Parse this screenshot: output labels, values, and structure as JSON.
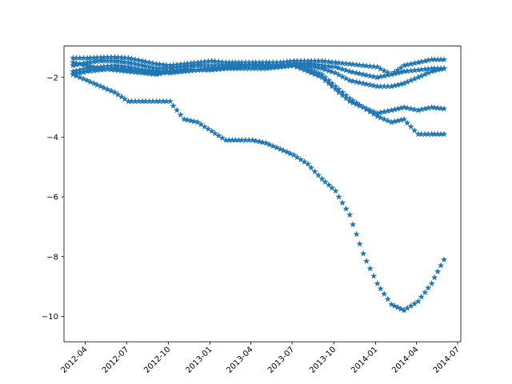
{
  "chart_data": {
    "type": "scatter",
    "title": "",
    "xlabel": "",
    "ylabel": "",
    "marker": "star",
    "color": "#1f77b4",
    "grid": false,
    "legend": "none",
    "xlim": [
      "2012-02-14",
      "2014-07-08"
    ],
    "ylim": [
      -10.85,
      -0.95
    ],
    "x_ticks": [
      {
        "value": "2012-04-01",
        "label": "2012-04"
      },
      {
        "value": "2012-07-01",
        "label": "2012-07"
      },
      {
        "value": "2012-10-01",
        "label": "2012-10"
      },
      {
        "value": "2013-01-01",
        "label": "2013-01"
      },
      {
        "value": "2013-04-01",
        "label": "2013-04"
      },
      {
        "value": "2013-07-01",
        "label": "2013-07"
      },
      {
        "value": "2013-10-01",
        "label": "2013-10"
      },
      {
        "value": "2014-01-01",
        "label": "2014-01"
      },
      {
        "value": "2014-04-01",
        "label": "2014-04"
      },
      {
        "value": "2014-07-01",
        "label": "2014-07"
      }
    ],
    "y_ticks": [
      {
        "value": -2,
        "label": "−2"
      },
      {
        "value": -4,
        "label": "−4"
      },
      {
        "value": -6,
        "label": "−6"
      },
      {
        "value": -8,
        "label": "−8"
      },
      {
        "value": -10,
        "label": "−10"
      }
    ],
    "series": [
      {
        "x": [
          "2012-03-05",
          "2012-04-05",
          "2012-05-05",
          "2012-06-05",
          "2012-07-05",
          "2012-08-05",
          "2012-09-05",
          "2012-10-05",
          "2012-11-05",
          "2012-12-05",
          "2013-01-05",
          "2013-02-05",
          "2013-03-05",
          "2013-04-05",
          "2013-05-05",
          "2013-06-05",
          "2013-07-05",
          "2013-08-05",
          "2013-09-05",
          "2013-10-05",
          "2013-11-05",
          "2013-12-05",
          "2014-01-05",
          "2014-02-05",
          "2014-03-05",
          "2014-04-05",
          "2014-05-05",
          "2014-06-01"
        ],
        "y": [
          -1.35,
          -1.35,
          -1.33,
          -1.32,
          -1.35,
          -1.45,
          -1.55,
          -1.6,
          -1.55,
          -1.5,
          -1.45,
          -1.5,
          -1.5,
          -1.5,
          -1.5,
          -1.5,
          -1.45,
          -1.45,
          -1.45,
          -1.5,
          -1.55,
          -1.6,
          -1.65,
          -1.9,
          -1.6,
          -1.5,
          -1.4,
          -1.4
        ]
      },
      {
        "x": [
          "2012-03-05",
          "2012-04-05",
          "2012-05-05",
          "2012-06-05",
          "2012-07-05",
          "2012-08-05",
          "2012-09-05",
          "2012-10-05",
          "2012-11-05",
          "2012-12-05",
          "2013-01-05",
          "2013-02-05",
          "2013-03-05",
          "2013-04-05",
          "2013-05-05",
          "2013-06-05",
          "2013-07-05",
          "2013-08-05",
          "2013-09-05",
          "2013-10-05",
          "2013-11-05",
          "2013-12-05",
          "2014-01-05",
          "2014-02-05",
          "2014-03-05",
          "2014-04-05",
          "2014-05-05",
          "2014-06-01"
        ],
        "y": [
          -1.6,
          -1.5,
          -1.45,
          -1.45,
          -1.5,
          -1.6,
          -1.7,
          -1.7,
          -1.65,
          -1.6,
          -1.6,
          -1.6,
          -1.6,
          -1.6,
          -1.65,
          -1.65,
          -1.55,
          -1.55,
          -1.6,
          -1.65,
          -1.8,
          -1.9,
          -2.0,
          -1.9,
          -1.8,
          -1.75,
          -1.7,
          -1.7
        ]
      },
      {
        "x": [
          "2012-03-05",
          "2012-04-05",
          "2012-05-05",
          "2012-06-05",
          "2012-07-05",
          "2012-08-05",
          "2012-09-05",
          "2012-10-05",
          "2012-11-05",
          "2012-12-05",
          "2013-01-05",
          "2013-02-05",
          "2013-03-05",
          "2013-04-05",
          "2013-05-05",
          "2013-06-05",
          "2013-07-05",
          "2013-08-05",
          "2013-09-05",
          "2013-10-05",
          "2013-11-05",
          "2013-12-05",
          "2014-01-05",
          "2014-02-05",
          "2014-03-05",
          "2014-04-05",
          "2014-05-05",
          "2014-06-01"
        ],
        "y": [
          -1.8,
          -1.7,
          -1.65,
          -1.6,
          -1.65,
          -1.75,
          -1.8,
          -1.85,
          -1.8,
          -1.75,
          -1.75,
          -1.7,
          -1.7,
          -1.7,
          -1.7,
          -1.65,
          -1.6,
          -1.6,
          -1.7,
          -1.85,
          -2.1,
          -2.2,
          -2.3,
          -2.3,
          -2.2,
          -2.0,
          -1.8,
          -1.7
        ]
      },
      {
        "x": [
          "2012-03-05",
          "2012-04-05",
          "2012-05-05",
          "2012-06-05",
          "2012-07-05",
          "2012-08-05",
          "2012-09-05",
          "2012-10-05",
          "2012-11-05",
          "2012-12-05",
          "2013-01-05",
          "2013-02-05",
          "2013-03-05",
          "2013-04-05",
          "2013-05-05",
          "2013-06-05",
          "2013-07-05",
          "2013-08-05",
          "2013-09-05",
          "2013-10-05",
          "2013-11-05",
          "2013-12-05",
          "2014-01-05",
          "2014-02-05",
          "2014-03-05",
          "2014-04-05",
          "2014-05-05",
          "2014-06-01"
        ],
        "y": [
          -1.5,
          -1.6,
          -1.7,
          -1.75,
          -1.8,
          -1.85,
          -1.9,
          -1.8,
          -1.75,
          -1.75,
          -1.7,
          -1.65,
          -1.65,
          -1.6,
          -1.6,
          -1.6,
          -1.6,
          -1.7,
          -1.9,
          -2.3,
          -2.7,
          -3.0,
          -3.2,
          -3.1,
          -3.0,
          -3.1,
          -3.0,
          -3.05
        ]
      },
      {
        "x": [
          "2012-03-05",
          "2012-04-05",
          "2012-05-05",
          "2012-06-05",
          "2012-07-05",
          "2012-08-05",
          "2012-09-05",
          "2012-10-05",
          "2012-11-05",
          "2012-12-05",
          "2013-01-05",
          "2013-02-05",
          "2013-03-05",
          "2013-04-05",
          "2013-05-05",
          "2013-06-05",
          "2013-07-05",
          "2013-08-05",
          "2013-09-05",
          "2013-10-05",
          "2013-11-05",
          "2013-12-05",
          "2014-01-05",
          "2014-02-05",
          "2014-03-05",
          "2014-04-05",
          "2014-05-05",
          "2014-06-01"
        ],
        "y": [
          -1.9,
          -1.8,
          -1.75,
          -1.7,
          -1.75,
          -1.8,
          -1.85,
          -1.8,
          -1.75,
          -1.75,
          -1.7,
          -1.7,
          -1.65,
          -1.6,
          -1.6,
          -1.6,
          -1.6,
          -1.8,
          -2.0,
          -2.4,
          -2.8,
          -3.0,
          -3.3,
          -3.5,
          -3.4,
          -3.9,
          -3.9,
          -3.9
        ]
      },
      {
        "x": [
          "2012-03-05",
          "2012-04-05",
          "2012-05-05",
          "2012-06-05",
          "2012-07-05",
          "2012-08-05",
          "2012-09-05",
          "2012-10-05",
          "2012-11-05",
          "2012-12-05",
          "2013-01-05",
          "2013-02-05",
          "2013-03-05",
          "2013-04-05",
          "2013-05-05",
          "2013-06-05",
          "2013-07-05",
          "2013-08-05",
          "2013-09-05",
          "2013-10-05",
          "2013-11-05",
          "2013-12-05",
          "2014-01-05",
          "2014-02-05",
          "2014-03-05",
          "2014-04-05",
          "2014-05-05",
          "2014-06-01"
        ],
        "y": [
          -1.9,
          -2.1,
          -2.3,
          -2.5,
          -2.8,
          -2.8,
          -2.8,
          -2.8,
          -3.4,
          -3.5,
          -3.8,
          -4.1,
          -4.1,
          -4.1,
          -4.2,
          -4.4,
          -4.6,
          -4.9,
          -5.4,
          -5.8,
          -6.6,
          -7.9,
          -8.9,
          -9.6,
          -9.8,
          -9.5,
          -8.9,
          -8.1
        ]
      }
    ]
  }
}
